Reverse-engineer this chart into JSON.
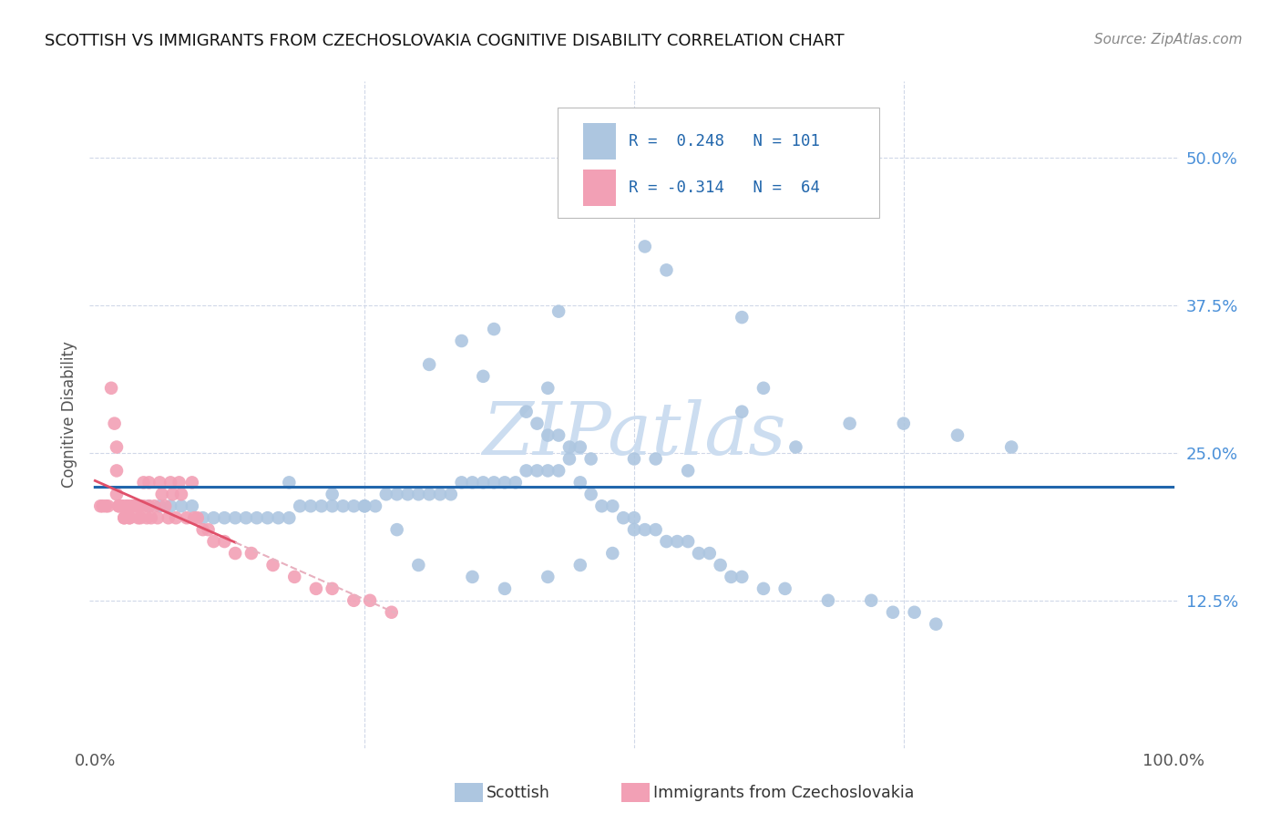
{
  "title": "SCOTTISH VS IMMIGRANTS FROM CZECHOSLOVAKIA COGNITIVE DISABILITY CORRELATION CHART",
  "source": "Source: ZipAtlas.com",
  "ylabel": "Cognitive Disability",
  "r1": 0.248,
  "n1": 101,
  "r2": -0.314,
  "n2": 64,
  "color_blue": "#adc6e0",
  "color_pink": "#f2a0b5",
  "line_color_blue": "#2166ac",
  "line_color_pink": "#e0506a",
  "line_color_pink_dashed": "#e8b0bf",
  "grid_color": "#d0d8e8",
  "tick_color_right": "#4a90d9",
  "watermark_color": "#ccddf0",
  "blue_x": [
    0.44,
    0.51,
    0.53,
    0.37,
    0.43,
    0.42,
    0.31,
    0.34,
    0.4,
    0.41,
    0.42,
    0.43,
    0.44,
    0.45,
    0.46,
    0.5,
    0.52,
    0.55,
    0.6,
    0.36,
    0.62,
    0.65,
    0.7,
    0.75,
    0.8,
    0.85,
    0.6,
    0.05,
    0.06,
    0.07,
    0.08,
    0.09,
    0.1,
    0.11,
    0.12,
    0.13,
    0.14,
    0.15,
    0.16,
    0.17,
    0.18,
    0.19,
    0.2,
    0.21,
    0.22,
    0.23,
    0.24,
    0.25,
    0.26,
    0.27,
    0.28,
    0.29,
    0.3,
    0.31,
    0.32,
    0.33,
    0.34,
    0.35,
    0.36,
    0.37,
    0.38,
    0.39,
    0.4,
    0.41,
    0.42,
    0.43,
    0.44,
    0.45,
    0.46,
    0.47,
    0.48,
    0.49,
    0.5,
    0.51,
    0.52,
    0.53,
    0.54,
    0.55,
    0.56,
    0.57,
    0.58,
    0.59,
    0.6,
    0.62,
    0.64,
    0.68,
    0.72,
    0.74,
    0.76,
    0.78,
    0.5,
    0.48,
    0.45,
    0.42,
    0.38,
    0.35,
    0.3,
    0.28,
    0.25,
    0.22,
    0.18
  ],
  "blue_y": [
    0.485,
    0.425,
    0.405,
    0.355,
    0.37,
    0.305,
    0.325,
    0.345,
    0.285,
    0.275,
    0.265,
    0.265,
    0.255,
    0.255,
    0.245,
    0.245,
    0.245,
    0.235,
    0.365,
    0.315,
    0.305,
    0.255,
    0.275,
    0.275,
    0.265,
    0.255,
    0.285,
    0.205,
    0.205,
    0.205,
    0.205,
    0.205,
    0.195,
    0.195,
    0.195,
    0.195,
    0.195,
    0.195,
    0.195,
    0.195,
    0.195,
    0.205,
    0.205,
    0.205,
    0.205,
    0.205,
    0.205,
    0.205,
    0.205,
    0.215,
    0.215,
    0.215,
    0.215,
    0.215,
    0.215,
    0.215,
    0.225,
    0.225,
    0.225,
    0.225,
    0.225,
    0.225,
    0.235,
    0.235,
    0.235,
    0.235,
    0.245,
    0.225,
    0.215,
    0.205,
    0.205,
    0.195,
    0.195,
    0.185,
    0.185,
    0.175,
    0.175,
    0.175,
    0.165,
    0.165,
    0.155,
    0.145,
    0.145,
    0.135,
    0.135,
    0.125,
    0.125,
    0.115,
    0.115,
    0.105,
    0.185,
    0.165,
    0.155,
    0.145,
    0.135,
    0.145,
    0.155,
    0.185,
    0.205,
    0.215,
    0.225
  ],
  "pink_x": [
    0.005,
    0.007,
    0.01,
    0.012,
    0.015,
    0.018,
    0.02,
    0.02,
    0.02,
    0.022,
    0.022,
    0.025,
    0.025,
    0.025,
    0.027,
    0.027,
    0.03,
    0.03,
    0.03,
    0.03,
    0.032,
    0.032,
    0.035,
    0.035,
    0.035,
    0.038,
    0.04,
    0.04,
    0.042,
    0.042,
    0.045,
    0.045,
    0.048,
    0.05,
    0.05,
    0.052,
    0.055,
    0.058,
    0.06,
    0.062,
    0.065,
    0.068,
    0.07,
    0.072,
    0.075,
    0.078,
    0.08,
    0.085,
    0.09,
    0.092,
    0.095,
    0.1,
    0.105,
    0.11,
    0.12,
    0.13,
    0.145,
    0.165,
    0.185,
    0.205,
    0.22,
    0.24,
    0.255,
    0.275
  ],
  "pink_y": [
    0.205,
    0.205,
    0.205,
    0.205,
    0.305,
    0.275,
    0.255,
    0.235,
    0.215,
    0.205,
    0.205,
    0.205,
    0.205,
    0.205,
    0.195,
    0.195,
    0.205,
    0.205,
    0.205,
    0.205,
    0.195,
    0.195,
    0.205,
    0.205,
    0.205,
    0.205,
    0.205,
    0.195,
    0.205,
    0.195,
    0.225,
    0.205,
    0.195,
    0.225,
    0.205,
    0.195,
    0.205,
    0.195,
    0.225,
    0.215,
    0.205,
    0.195,
    0.225,
    0.215,
    0.195,
    0.225,
    0.215,
    0.195,
    0.225,
    0.195,
    0.195,
    0.185,
    0.185,
    0.175,
    0.175,
    0.165,
    0.165,
    0.155,
    0.145,
    0.135,
    0.135,
    0.125,
    0.125,
    0.115
  ]
}
